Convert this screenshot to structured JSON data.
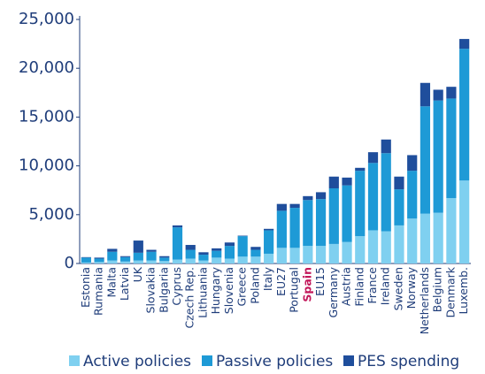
{
  "chart_data": {
    "type": "stacked_bar",
    "categories": [
      "Estonia",
      "Rumania",
      "Malta",
      "Latvia",
      "UK",
      "Slovakia",
      "Bulgaria",
      "Cyprus",
      "Czech Rep.",
      "Lithuania",
      "Hungary",
      "Slovenia",
      "Greece",
      "Poland",
      "Italy",
      "EU27",
      "Portugal",
      "Spain",
      "EU15",
      "Germany",
      "Austria",
      "Finland",
      "France",
      "Ireland",
      "Sweden",
      "Norway",
      "Netherlands",
      "Belgium",
      "Denmark",
      "Luxemb."
    ],
    "series": [
      {
        "name": "Active policies",
        "color": "#7fd0f0",
        "values": [
          100,
          150,
          300,
          200,
          300,
          300,
          250,
          400,
          500,
          300,
          600,
          500,
          700,
          700,
          1000,
          1600,
          1600,
          1800,
          1800,
          2000,
          2200,
          2800,
          3400,
          3300,
          3900,
          4600,
          5100,
          5200,
          6700,
          8500
        ]
      },
      {
        "name": "Passive policies",
        "color": "#1e9ad6",
        "values": [
          500,
          350,
          900,
          450,
          800,
          900,
          350,
          3300,
          900,
          600,
          700,
          1300,
          2100,
          700,
          2400,
          3800,
          4100,
          4700,
          4800,
          5700,
          5800,
          6700,
          6900,
          8000,
          3700,
          4900,
          11000,
          11500,
          10200,
          13500
        ]
      },
      {
        "name": "PES spending",
        "color": "#1f4e9c",
        "values": [
          50,
          100,
          300,
          100,
          1250,
          200,
          150,
          200,
          500,
          250,
          250,
          350,
          50,
          300,
          150,
          700,
          400,
          400,
          700,
          1200,
          800,
          300,
          1100,
          1400,
          1300,
          1600,
          2400,
          1100,
          1200,
          1000
        ]
      }
    ],
    "ylim": [
      0,
      25000
    ],
    "yticks": [
      {
        "value": 0,
        "label": "0"
      },
      {
        "value": 5000,
        "label": "5,000"
      },
      {
        "value": 10000,
        "label": "10,000"
      },
      {
        "value": 15000,
        "label": "15,000"
      },
      {
        "value": 20000,
        "label": "20,000"
      },
      {
        "value": 25000,
        "label": "25,000"
      }
    ],
    "highlight_index": 17,
    "highlight_color": "#c2185b"
  }
}
